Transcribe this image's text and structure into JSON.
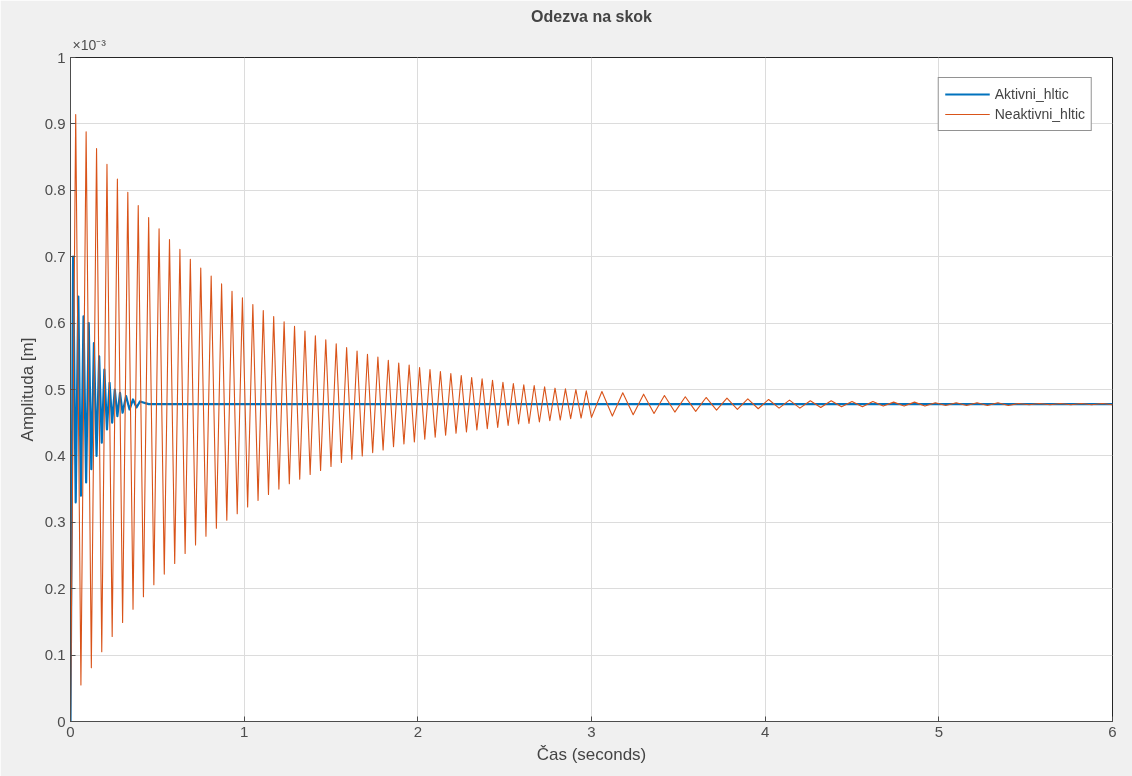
{
  "chart_data": {
    "type": "line",
    "title": "Odezva na skok",
    "xlabel": "Čas (seconds)",
    "ylabel": "Amplituda [m]",
    "annotations": [
      "×10⁻³"
    ],
    "xlim": [
      0,
      6
    ],
    "xticks": [
      0,
      1,
      2,
      3,
      4,
      5,
      6
    ],
    "ylim": [
      0,
      1
    ],
    "yticks": [
      0,
      0.1,
      0.2,
      0.3,
      0.4,
      0.5,
      0.6,
      0.7,
      0.8,
      0.9,
      1
    ],
    "grid": true,
    "legend": "top right",
    "line_style": "solid",
    "marker": "none",
    "series": [
      {
        "name": "Aktivni_hltic",
        "color": "#0072bd",
        "x": [
          0,
          0.015,
          0.03,
          0.045,
          0.06,
          0.075,
          0.09,
          0.105,
          0.12,
          0.135,
          0.15,
          0.165,
          0.18,
          0.195,
          0.21,
          0.225,
          0.24,
          0.255,
          0.27,
          0.285,
          0.3,
          0.32,
          0.34,
          0.36,
          0.38,
          0.4,
          0.45,
          6
        ],
        "values": [
          0,
          0.7,
          0.33,
          0.64,
          0.34,
          0.61,
          0.36,
          0.6,
          0.38,
          0.57,
          0.4,
          0.55,
          0.42,
          0.53,
          0.44,
          0.51,
          0.45,
          0.5,
          0.46,
          0.495,
          0.465,
          0.49,
          0.47,
          0.485,
          0.473,
          0.482,
          0.478,
          0.478
        ]
      },
      {
        "name": "Neaktivni_hltic",
        "color": "#d95319",
        "x": [
          0,
          0.03,
          0.06,
          0.09,
          0.12,
          0.15,
          0.18,
          0.21,
          0.24,
          0.27,
          0.3,
          0.33,
          0.36,
          0.39,
          0.42,
          0.45,
          0.48,
          0.51,
          0.54,
          0.57,
          0.6,
          0.63,
          0.66,
          0.69,
          0.72,
          0.75,
          0.78,
          0.81,
          0.84,
          0.87,
          0.9,
          0.93,
          0.96,
          0.99,
          1.02,
          1.05,
          1.08,
          1.11,
          1.14,
          1.17,
          1.2,
          1.23,
          1.26,
          1.29,
          1.32,
          1.35,
          1.38,
          1.41,
          1.44,
          1.47,
          1.5,
          1.53,
          1.56,
          1.59,
          1.62,
          1.65,
          1.68,
          1.71,
          1.74,
          1.77,
          1.8,
          1.83,
          1.86,
          1.89,
          1.92,
          1.95,
          1.98,
          2.01,
          2.04,
          2.07,
          2.1,
          2.13,
          2.16,
          2.19,
          2.22,
          2.25,
          2.28,
          2.31,
          2.34,
          2.37,
          2.4,
          2.43,
          2.46,
          2.49,
          2.52,
          2.55,
          2.58,
          2.61,
          2.64,
          2.67,
          2.7,
          2.73,
          2.76,
          2.79,
          2.82,
          2.85,
          2.88,
          2.91,
          2.94,
          2.97,
          3.0,
          3.06,
          3.12,
          3.18,
          3.24,
          3.3,
          3.36,
          3.42,
          3.48,
          3.54,
          3.6,
          3.66,
          3.72,
          3.78,
          3.84,
          3.9,
          3.96,
          4.02,
          4.08,
          4.14,
          4.2,
          4.26,
          4.32,
          4.38,
          4.44,
          4.5,
          4.56,
          4.62,
          4.68,
          4.74,
          4.8,
          4.86,
          4.92,
          4.98,
          5.04,
          5.1,
          5.16,
          5.22,
          5.28,
          5.34,
          5.4,
          5.46,
          5.52,
          5.58,
          5.64,
          5.7,
          5.76,
          5.82,
          5.88,
          5.94,
          6.0
        ],
        "values": [
          0,
          0.914,
          0.055,
          0.888,
          0.081,
          0.863,
          0.105,
          0.839,
          0.128,
          0.817,
          0.149,
          0.797,
          0.169,
          0.777,
          0.188,
          0.759,
          0.206,
          0.742,
          0.222,
          0.726,
          0.238,
          0.711,
          0.253,
          0.696,
          0.266,
          0.683,
          0.279,
          0.671,
          0.291,
          0.659,
          0.303,
          0.648,
          0.313,
          0.638,
          0.323,
          0.628,
          0.333,
          0.619,
          0.342,
          0.61,
          0.35,
          0.602,
          0.358,
          0.595,
          0.365,
          0.588,
          0.372,
          0.581,
          0.378,
          0.575,
          0.384,
          0.569,
          0.39,
          0.563,
          0.395,
          0.558,
          0.4,
          0.553,
          0.405,
          0.549,
          0.409,
          0.544,
          0.414,
          0.54,
          0.418,
          0.537,
          0.421,
          0.533,
          0.425,
          0.53,
          0.428,
          0.527,
          0.431,
          0.524,
          0.434,
          0.521,
          0.436,
          0.518,
          0.439,
          0.516,
          0.441,
          0.514,
          0.443,
          0.511,
          0.446,
          0.509,
          0.448,
          0.507,
          0.449,
          0.506,
          0.451,
          0.504,
          0.453,
          0.502,
          0.454,
          0.501,
          0.456,
          0.5,
          0.457,
          0.498,
          0.458,
          0.497,
          0.46,
          0.495,
          0.462,
          0.493,
          0.464,
          0.491,
          0.466,
          0.489,
          0.467,
          0.488,
          0.469,
          0.487,
          0.47,
          0.486,
          0.471,
          0.485,
          0.472,
          0.484,
          0.472,
          0.483,
          0.473,
          0.483,
          0.474,
          0.482,
          0.474,
          0.482,
          0.475,
          0.481,
          0.475,
          0.481,
          0.475,
          0.48,
          0.476,
          0.48,
          0.476,
          0.48,
          0.476,
          0.48,
          0.476,
          0.479,
          0.477,
          0.479,
          0.477,
          0.479,
          0.477,
          0.479,
          0.477,
          0.479,
          0.477
        ]
      }
    ]
  }
}
